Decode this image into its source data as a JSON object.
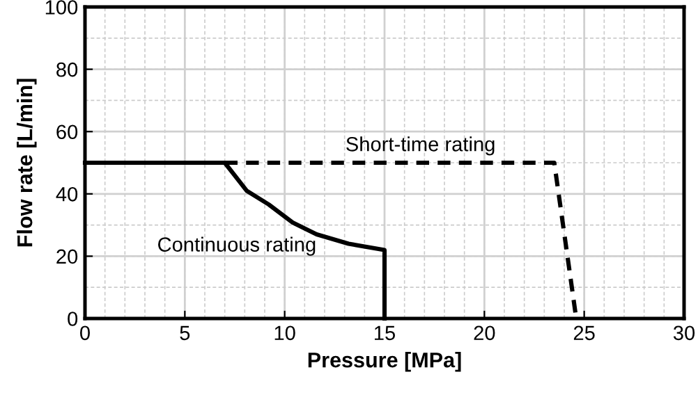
{
  "chart_data": {
    "type": "line",
    "xlabel": "Pressure [MPa]",
    "ylabel": "Flow rate [L/min]",
    "xlim": [
      0,
      30
    ],
    "ylim": [
      0,
      100
    ],
    "xticks": [
      0,
      5,
      10,
      15,
      20,
      25,
      30
    ],
    "yticks": [
      0,
      20,
      40,
      60,
      80,
      100
    ],
    "grid": true,
    "marker": "none",
    "series": [
      {
        "name": "Continuous rating",
        "color": "#000000",
        "line_style": "solid",
        "x": [
          0,
          7,
          8.1,
          9.2,
          10.4,
          11.6,
          13.2,
          15,
          15
        ],
        "values": [
          50,
          50,
          41,
          36.6,
          30.8,
          27,
          24,
          22,
          0
        ]
      },
      {
        "name": "Short-time rating",
        "color": "#000000",
        "line_style": "dashed",
        "x": [
          7,
          23.5,
          24.6
        ],
        "values": [
          50,
          50,
          0
        ]
      }
    ]
  }
}
